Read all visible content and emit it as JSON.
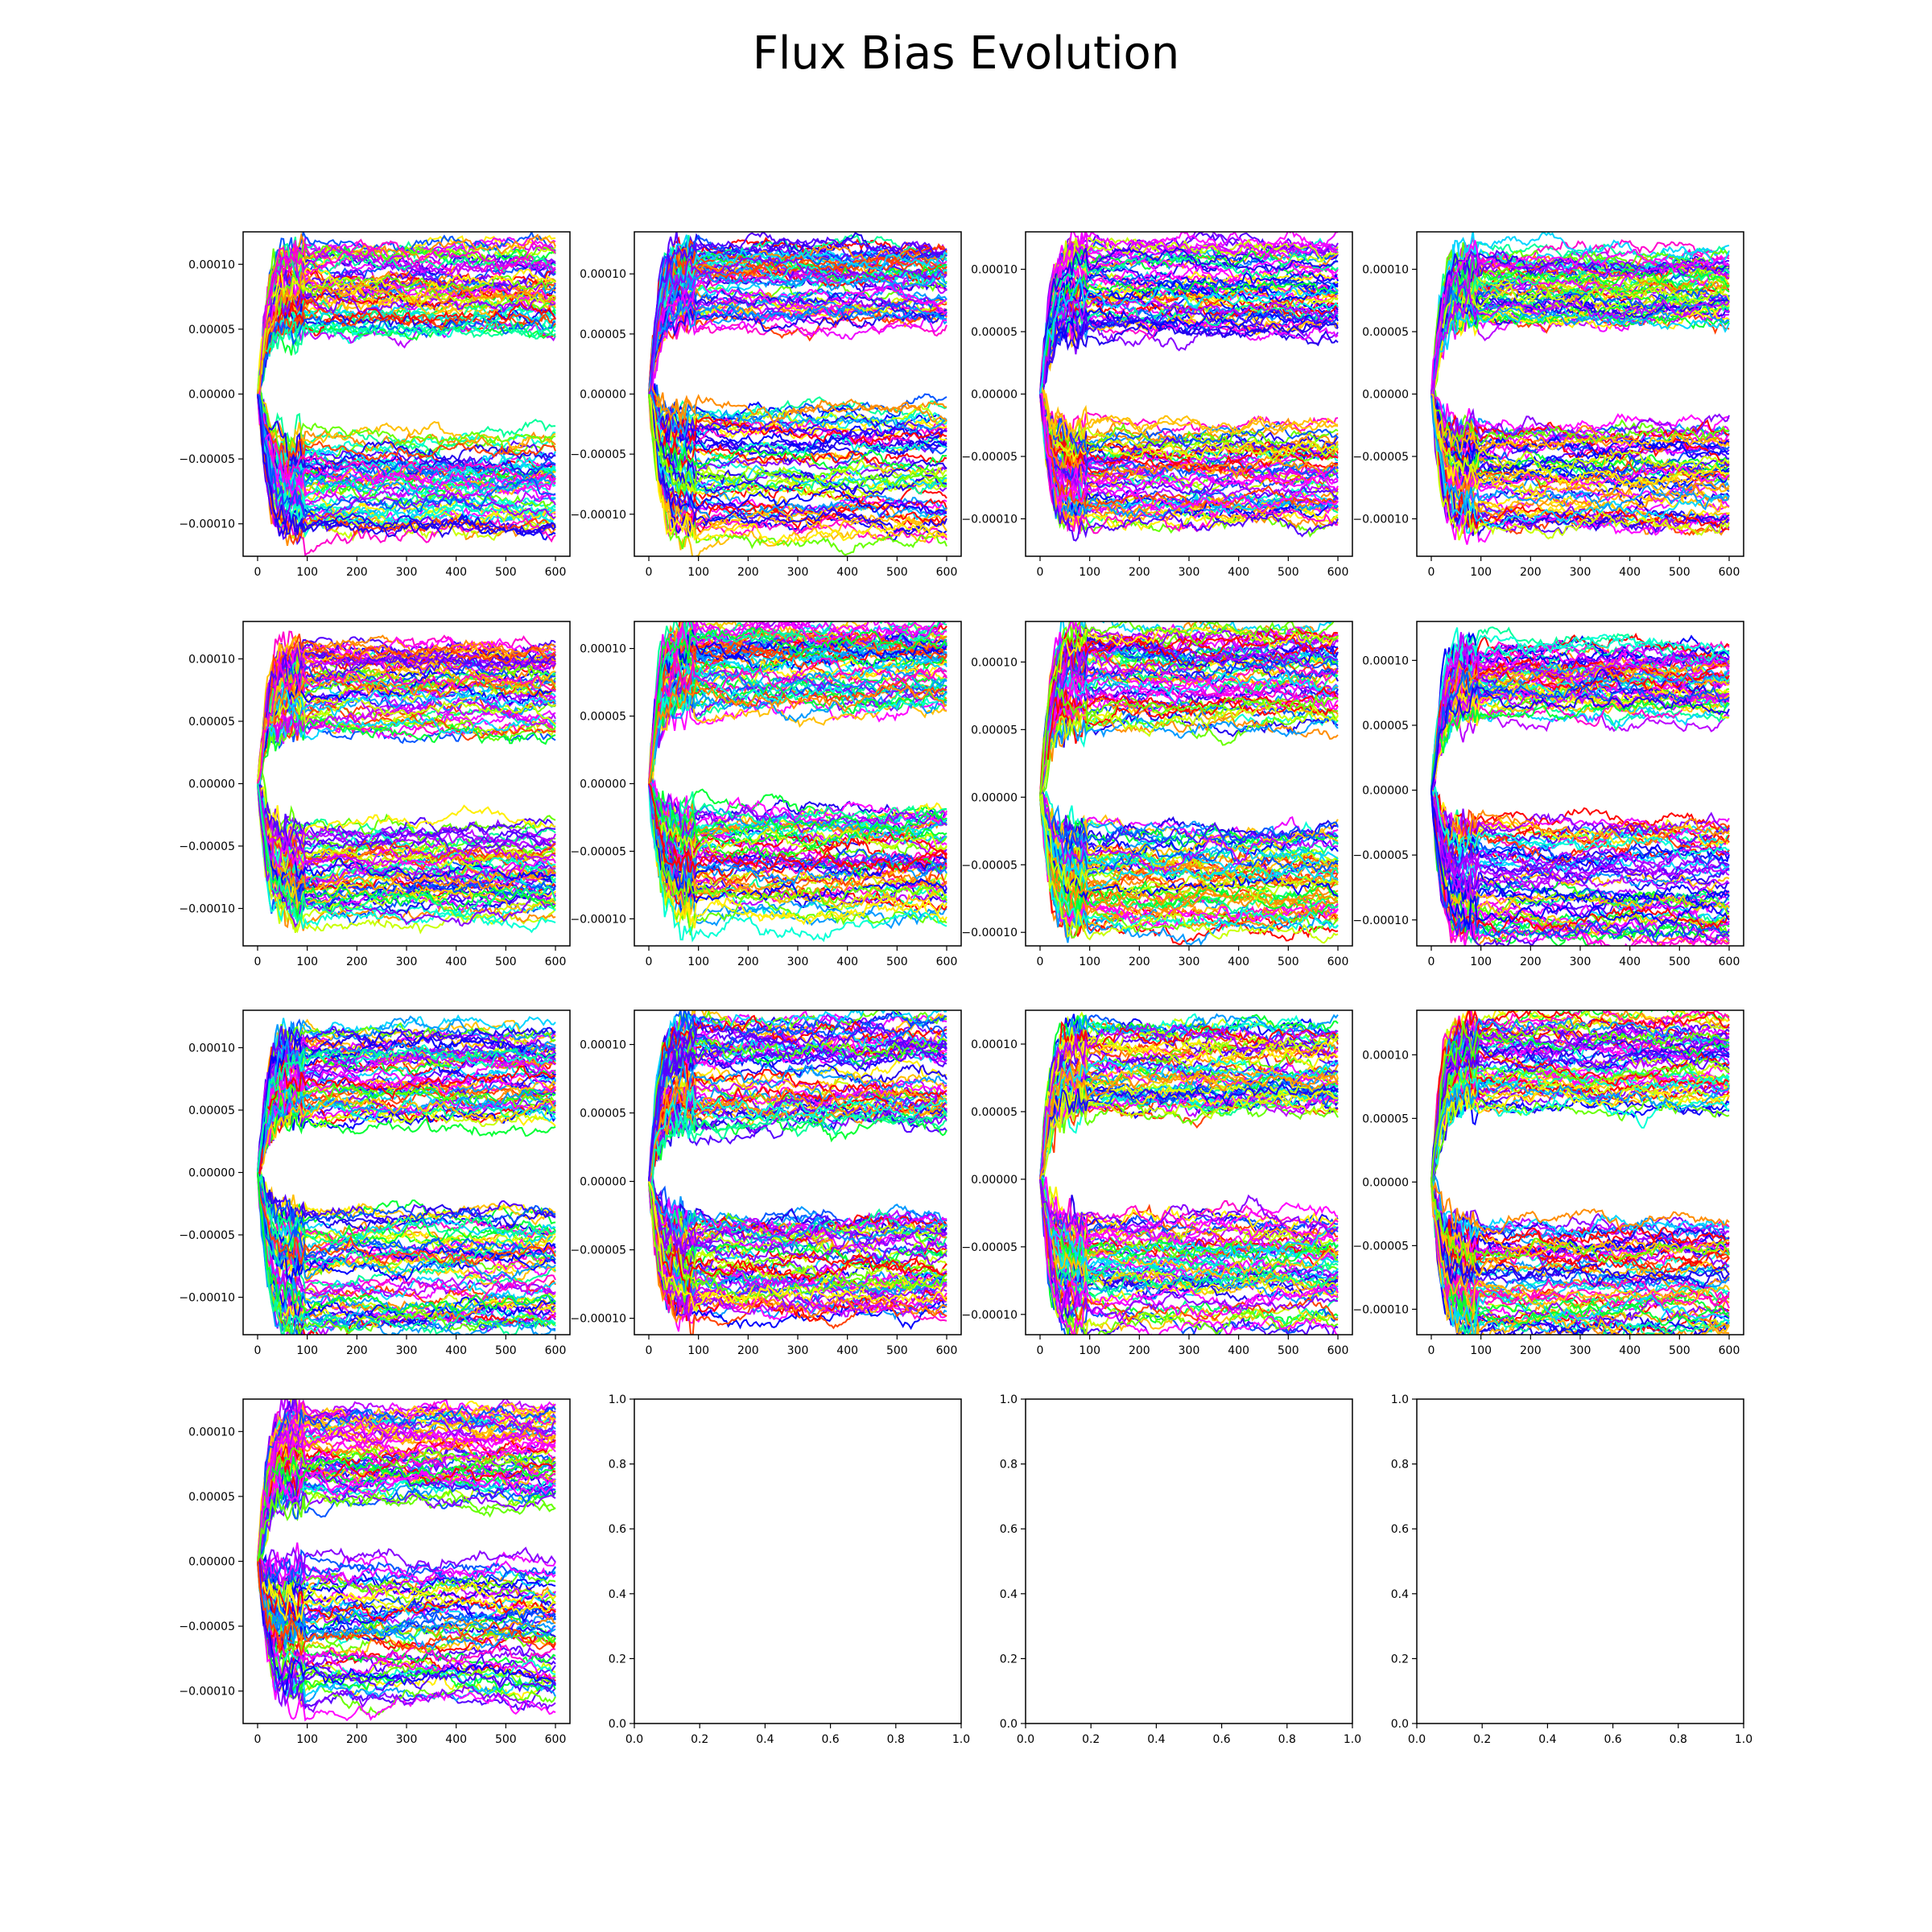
{
  "figure": {
    "title": "Flux Bias Evolution"
  },
  "palette": [
    "#ff0000",
    "#ff4000",
    "#ff8c00",
    "#ffbf00",
    "#ffee00",
    "#c8ff00",
    "#66ff00",
    "#00ff33",
    "#00ff99",
    "#00ffd5",
    "#00d5ff",
    "#0099ff",
    "#0055ff",
    "#0000ff",
    "#2200ee",
    "#5500ff",
    "#8800ff",
    "#bb00ff",
    "#ee00ff",
    "#ff00ff",
    "#ff00cc"
  ],
  "chart_data": [
    {
      "type": "line",
      "panel": 1,
      "x_range": [
        0,
        600
      ],
      "ylim": [
        -0.000125,
        0.000125
      ],
      "xticks": [
        "0",
        "100",
        "200",
        "300",
        "400",
        "500",
        "600"
      ],
      "yticks": [
        {
          "v": 0.0001,
          "l": "0.00010"
        },
        {
          "v": 5e-05,
          "l": "0.00005"
        },
        {
          "v": 0,
          "l": "0.00000"
        },
        {
          "v": -5e-05,
          "l": "−0.00005"
        },
        {
          "v": -0.0001,
          "l": "−0.00010"
        }
      ],
      "series_summary": {
        "upper_band": [
          4.8e-05,
          0.000113
        ],
        "lower_band": [
          -0.00011,
          -3e-05
        ],
        "n_lines": 120,
        "steps": 600
      }
    },
    {
      "type": "line",
      "panel": 2,
      "x_range": [
        0,
        600
      ],
      "ylim": [
        -0.000135,
        0.000135
      ],
      "xticks": [
        "0",
        "100",
        "200",
        "300",
        "400",
        "500",
        "600"
      ],
      "yticks": [
        {
          "v": 0.0001,
          "l": "0.00010"
        },
        {
          "v": 5e-05,
          "l": "0.00005"
        },
        {
          "v": 0,
          "l": "0.00000"
        },
        {
          "v": -5e-05,
          "l": "−0.00005"
        },
        {
          "v": -0.0001,
          "l": "−0.00010"
        }
      ],
      "series_summary": {
        "upper_band": [
          5.2e-05,
          0.000123
        ],
        "lower_band": [
          -0.00012,
          -1e-05
        ],
        "n_lines": 120,
        "steps": 600
      }
    },
    {
      "type": "line",
      "panel": 3,
      "x_range": [
        0,
        600
      ],
      "ylim": [
        -0.00013,
        0.00013
      ],
      "xticks": [
        "0",
        "100",
        "200",
        "300",
        "400",
        "500",
        "600"
      ],
      "yticks": [
        {
          "v": 0.0001,
          "l": "0.00010"
        },
        {
          "v": 5e-05,
          "l": "0.00005"
        },
        {
          "v": 0,
          "l": "0.00000"
        },
        {
          "v": -5e-05,
          "l": "−0.00005"
        },
        {
          "v": -0.0001,
          "l": "−0.00010"
        }
      ],
      "series_summary": {
        "upper_band": [
          4.8e-05,
          0.00012
        ],
        "lower_band": [
          -0.000105,
          -2e-05
        ],
        "n_lines": 120,
        "steps": 600
      }
    },
    {
      "type": "line",
      "panel": 4,
      "x_range": [
        0,
        600
      ],
      "ylim": [
        -0.00013,
        0.00013
      ],
      "xticks": [
        "0",
        "100",
        "200",
        "300",
        "400",
        "500",
        "600"
      ],
      "yticks": [
        {
          "v": 0.0001,
          "l": "0.00010"
        },
        {
          "v": 5e-05,
          "l": "0.00005"
        },
        {
          "v": 0,
          "l": "0.00000"
        },
        {
          "v": -5e-05,
          "l": "−0.00005"
        },
        {
          "v": -0.0001,
          "l": "−0.00010"
        }
      ],
      "series_summary": {
        "upper_band": [
          5.8e-05,
          0.000115
        ],
        "lower_band": [
          -0.00011,
          -2e-05
        ],
        "n_lines": 120,
        "steps": 600
      }
    },
    {
      "type": "line",
      "panel": 5,
      "x_range": [
        0,
        600
      ],
      "ylim": [
        -0.00013,
        0.00013
      ],
      "xticks": [
        "0",
        "100",
        "200",
        "300",
        "400",
        "500",
        "600"
      ],
      "yticks": [
        {
          "v": 0.0001,
          "l": "0.00010"
        },
        {
          "v": 5e-05,
          "l": "0.00005"
        },
        {
          "v": 0,
          "l": "0.00000"
        },
        {
          "v": -5e-05,
          "l": "−0.00005"
        },
        {
          "v": -0.0001,
          "l": "−0.00010"
        }
      ],
      "series_summary": {
        "upper_band": [
          4.2e-05,
          0.000112
        ],
        "lower_band": [
          -0.000115,
          -3e-05
        ],
        "n_lines": 120,
        "steps": 600
      }
    },
    {
      "type": "line",
      "panel": 6,
      "x_range": [
        0,
        600
      ],
      "ylim": [
        -0.00012,
        0.00012
      ],
      "xticks": [
        "0",
        "100",
        "200",
        "300",
        "400",
        "500",
        "600"
      ],
      "yticks": [
        {
          "v": 0.0001,
          "l": "0.00010"
        },
        {
          "v": 5e-05,
          "l": "0.00005"
        },
        {
          "v": 0,
          "l": "0.00000"
        },
        {
          "v": -5e-05,
          "l": "−0.00005"
        },
        {
          "v": -0.0001,
          "l": "−0.00010"
        }
      ],
      "series_summary": {
        "upper_band": [
          5.5e-05,
          0.000115
        ],
        "lower_band": [
          -0.000105,
          -2e-05
        ],
        "n_lines": 120,
        "steps": 600
      }
    },
    {
      "type": "line",
      "panel": 7,
      "x_range": [
        0,
        600
      ],
      "ylim": [
        -0.00011,
        0.00013
      ],
      "xticks": [
        "0",
        "100",
        "200",
        "300",
        "400",
        "500",
        "600"
      ],
      "yticks": [
        {
          "v": 0.0001,
          "l": "0.00010"
        },
        {
          "v": 5e-05,
          "l": "0.00005"
        },
        {
          "v": 0,
          "l": "0.00000"
        },
        {
          "v": -5e-05,
          "l": "−0.00005"
        },
        {
          "v": -0.0001,
          "l": "−0.00010"
        }
      ],
      "series_summary": {
        "upper_band": [
          5.2e-05,
          0.000125
        ],
        "lower_band": [
          -0.0001,
          -2.5e-05
        ],
        "n_lines": 120,
        "steps": 600
      }
    },
    {
      "type": "line",
      "panel": 8,
      "x_range": [
        0,
        600
      ],
      "ylim": [
        -0.00012,
        0.00013
      ],
      "xticks": [
        "0",
        "100",
        "200",
        "300",
        "400",
        "500",
        "600"
      ],
      "yticks": [
        {
          "v": 0.0001,
          "l": "0.00010"
        },
        {
          "v": 5e-05,
          "l": "0.00005"
        },
        {
          "v": 0,
          "l": "0.00000"
        },
        {
          "v": -5e-05,
          "l": "−0.00005"
        },
        {
          "v": -0.0001,
          "l": "−0.00010"
        }
      ],
      "series_summary": {
        "upper_band": [
          5.5e-05,
          0.000112
        ],
        "lower_band": [
          -0.000115,
          -2e-05
        ],
        "n_lines": 120,
        "steps": 600
      }
    },
    {
      "type": "line",
      "panel": 9,
      "x_range": [
        0,
        600
      ],
      "ylim": [
        -0.00013,
        0.00013
      ],
      "xticks": [
        "0",
        "100",
        "200",
        "300",
        "400",
        "500",
        "600"
      ],
      "yticks": [
        {
          "v": 0.0001,
          "l": "0.00010"
        },
        {
          "v": 5e-05,
          "l": "0.00005"
        },
        {
          "v": 0,
          "l": "0.00000"
        },
        {
          "v": -5e-05,
          "l": "−0.00005"
        },
        {
          "v": -0.0001,
          "l": "−0.00010"
        }
      ],
      "series_summary": {
        "upper_band": [
          4e-05,
          0.000118
        ],
        "lower_band": [
          -0.000125,
          -3e-05
        ],
        "n_lines": 120,
        "steps": 600
      }
    },
    {
      "type": "line",
      "panel": 10,
      "x_range": [
        0,
        600
      ],
      "ylim": [
        -0.000112,
        0.000125
      ],
      "xticks": [
        "0",
        "100",
        "200",
        "300",
        "400",
        "500",
        "600"
      ],
      "yticks": [
        {
          "v": 0.0001,
          "l": "0.00010"
        },
        {
          "v": 5e-05,
          "l": "0.00005"
        },
        {
          "v": 0,
          "l": "0.00000"
        },
        {
          "v": -5e-05,
          "l": "−0.00005"
        },
        {
          "v": -0.0001,
          "l": "−0.00010"
        }
      ],
      "series_summary": {
        "upper_band": [
          4e-05,
          0.000118
        ],
        "lower_band": [
          -0.0001,
          -2.5e-05
        ],
        "n_lines": 120,
        "steps": 600
      }
    },
    {
      "type": "line",
      "panel": 11,
      "x_range": [
        0,
        600
      ],
      "ylim": [
        -0.000115,
        0.000125
      ],
      "xticks": [
        "0",
        "100",
        "200",
        "300",
        "400",
        "500",
        "600"
      ],
      "yticks": [
        {
          "v": 0.0001,
          "l": "0.00010"
        },
        {
          "v": 5e-05,
          "l": "0.00005"
        },
        {
          "v": 0,
          "l": "0.00000"
        },
        {
          "v": -5e-05,
          "l": "−0.00005"
        },
        {
          "v": -0.0001,
          "l": "−0.00010"
        }
      ],
      "series_summary": {
        "upper_band": [
          5e-05,
          0.000115
        ],
        "lower_band": [
          -0.00011,
          -3e-05
        ],
        "n_lines": 120,
        "steps": 600
      }
    },
    {
      "type": "line",
      "panel": 12,
      "x_range": [
        0,
        600
      ],
      "ylim": [
        -0.00012,
        0.000135
      ],
      "xticks": [
        "0",
        "100",
        "200",
        "300",
        "400",
        "500",
        "600"
      ],
      "yticks": [
        {
          "v": 0.0001,
          "l": "0.00010"
        },
        {
          "v": 5e-05,
          "l": "0.00005"
        },
        {
          "v": 0,
          "l": "0.00000"
        },
        {
          "v": -5e-05,
          "l": "−0.00005"
        },
        {
          "v": -0.0001,
          "l": "−0.00010"
        }
      ],
      "series_summary": {
        "upper_band": [
          5.5e-05,
          0.00013
        ],
        "lower_band": [
          -0.000118,
          -3e-05
        ],
        "n_lines": 120,
        "steps": 600
      }
    },
    {
      "type": "line",
      "panel": 13,
      "x_range": [
        0,
        600
      ],
      "ylim": [
        -0.000125,
        0.000125
      ],
      "xticks": [
        "0",
        "100",
        "200",
        "300",
        "400",
        "500",
        "600"
      ],
      "yticks": [
        {
          "v": 0.0001,
          "l": "0.00010"
        },
        {
          "v": 5e-05,
          "l": "0.00005"
        },
        {
          "v": 0,
          "l": "0.00000"
        },
        {
          "v": -5e-05,
          "l": "−0.00005"
        },
        {
          "v": -0.0001,
          "l": "−0.00010"
        }
      ],
      "series_summary": {
        "upper_band": [
          4.5e-05,
          0.00012
        ],
        "lower_band": [
          -0.00011,
          5e-06
        ],
        "n_lines": 120,
        "steps": 600
      }
    },
    {
      "type": "empty",
      "panel": 14,
      "xlim": [
        0,
        1
      ],
      "ylim": [
        0,
        1
      ],
      "xticks": [
        "0.0",
        "0.2",
        "0.4",
        "0.6",
        "0.8",
        "1.0"
      ],
      "yticks": [
        {
          "v": 0,
          "l": "0.0"
        },
        {
          "v": 0.2,
          "l": "0.2"
        },
        {
          "v": 0.4,
          "l": "0.4"
        },
        {
          "v": 0.6,
          "l": "0.6"
        },
        {
          "v": 0.8,
          "l": "0.8"
        },
        {
          "v": 1,
          "l": "1.0"
        }
      ]
    },
    {
      "type": "empty",
      "panel": 15,
      "xlim": [
        0,
        1
      ],
      "ylim": [
        0,
        1
      ],
      "xticks": [
        "0.0",
        "0.2",
        "0.4",
        "0.6",
        "0.8",
        "1.0"
      ],
      "yticks": [
        {
          "v": 0,
          "l": "0.0"
        },
        {
          "v": 0.2,
          "l": "0.2"
        },
        {
          "v": 0.4,
          "l": "0.4"
        },
        {
          "v": 0.6,
          "l": "0.6"
        },
        {
          "v": 0.8,
          "l": "0.8"
        },
        {
          "v": 1,
          "l": "1.0"
        }
      ]
    },
    {
      "type": "empty",
      "panel": 16,
      "xlim": [
        0,
        1
      ],
      "ylim": [
        0,
        1
      ],
      "xticks": [
        "0.0",
        "0.2",
        "0.4",
        "0.6",
        "0.8",
        "1.0"
      ],
      "yticks": [
        {
          "v": 0,
          "l": "0.0"
        },
        {
          "v": 0.2,
          "l": "0.2"
        },
        {
          "v": 0.4,
          "l": "0.4"
        },
        {
          "v": 0.6,
          "l": "0.6"
        },
        {
          "v": 0.8,
          "l": "0.8"
        },
        {
          "v": 1,
          "l": "1.0"
        }
      ]
    }
  ]
}
